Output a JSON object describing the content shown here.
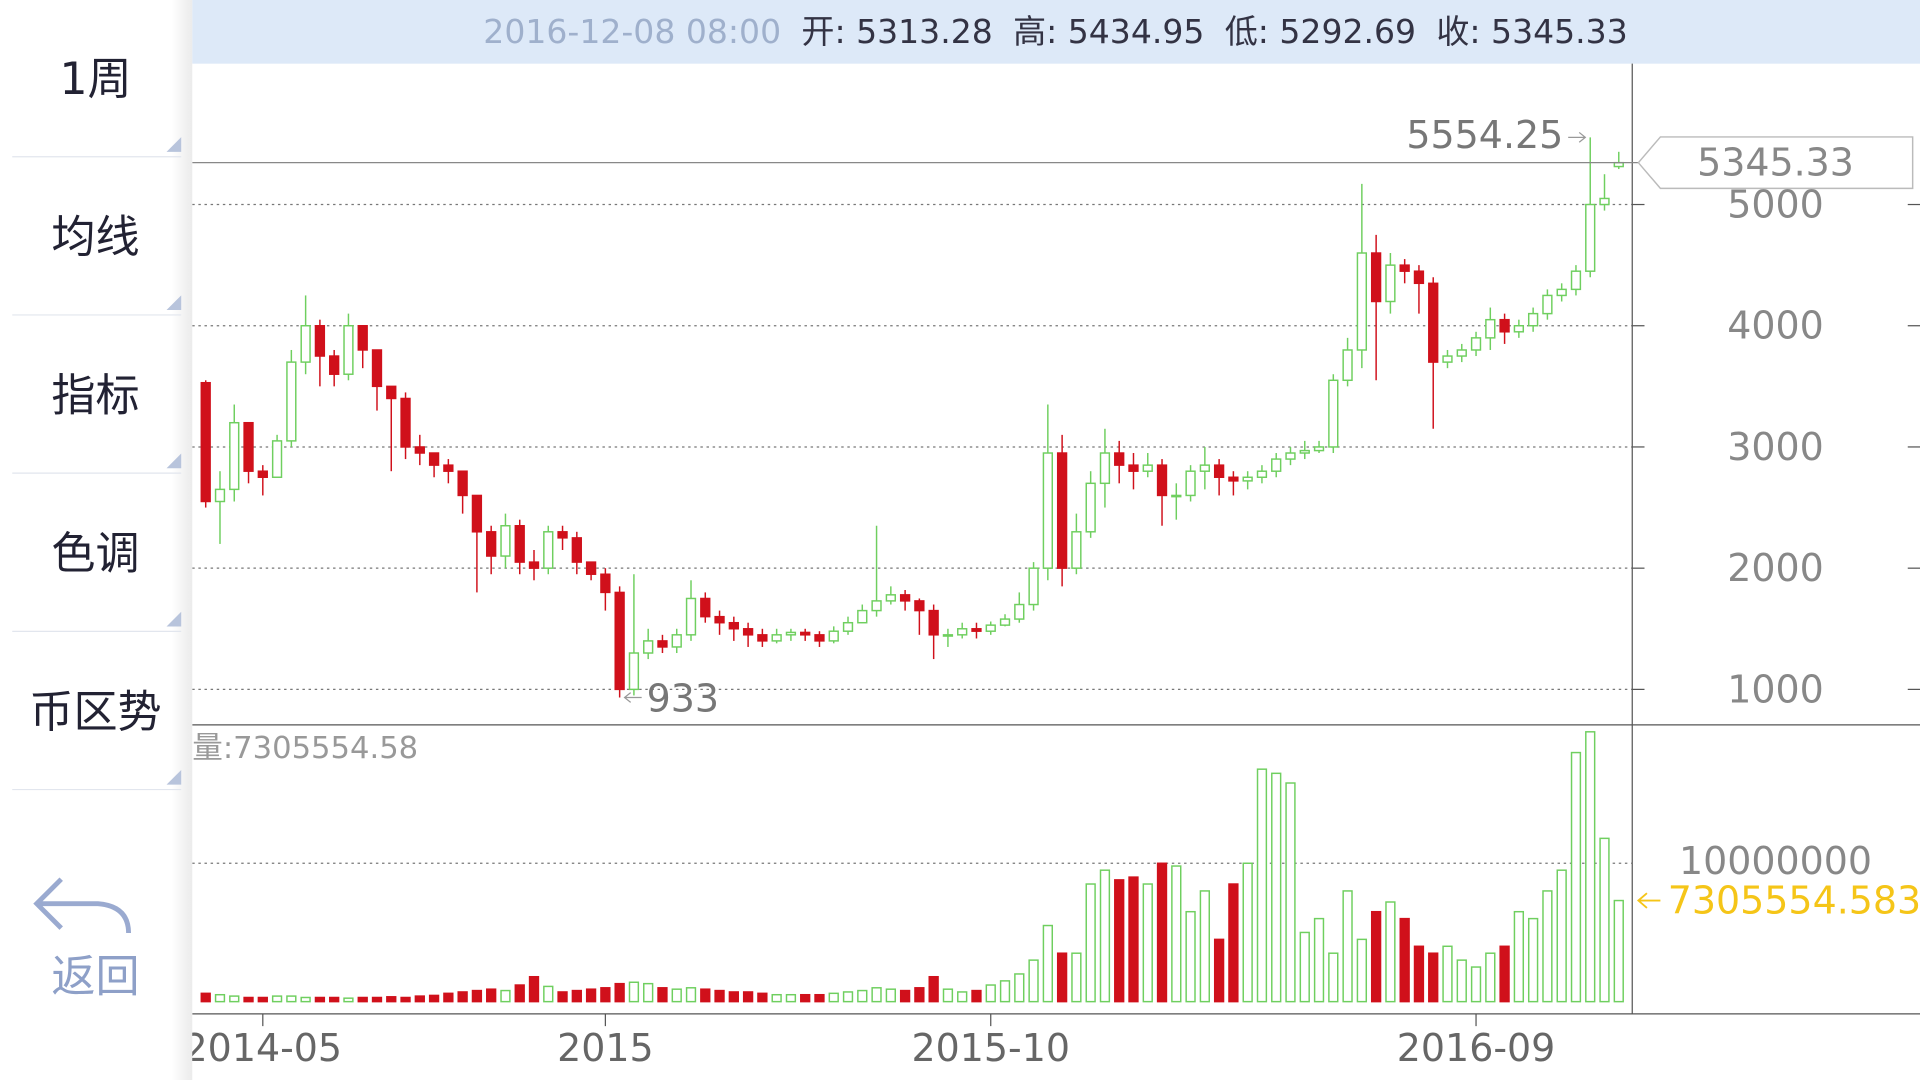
{
  "header": {
    "time": "2016-12-08 08:00",
    "open": "开: 5313.28",
    "high": "高: 5434.95",
    "low": "低: 5292.69",
    "close": "收: 5345.33"
  },
  "sidebar": {
    "items": [
      "1周",
      "均线",
      "指标",
      "色调",
      "币区势"
    ],
    "back": "返回"
  },
  "chart_data": {
    "type": "candlestick",
    "up_color": "#6fcf5f",
    "down_color": "#d0101b",
    "grid": true,
    "categories": [
      null,
      null,
      null,
      null,
      "2014-05",
      null,
      null,
      null,
      null,
      null,
      null,
      null,
      null,
      null,
      null,
      null,
      null,
      null,
      null,
      null,
      null,
      null,
      null,
      null,
      null,
      null,
      null,
      null,
      "2015",
      null,
      null,
      null,
      null,
      null,
      null,
      null,
      null,
      null,
      null,
      null,
      null,
      null,
      null,
      null,
      null,
      null,
      null,
      null,
      null,
      null,
      null,
      null,
      null,
      null,
      null,
      "2015-10",
      null,
      null,
      null,
      null,
      null,
      null,
      null,
      null,
      null,
      null,
      null,
      null,
      null,
      null,
      null,
      null,
      null,
      null,
      null,
      null,
      null,
      null,
      null,
      null,
      null,
      null,
      null,
      null,
      null,
      null,
      null,
      null,
      null,
      "2016-09",
      null,
      null,
      null,
      null,
      null,
      null,
      null,
      null,
      null,
      null
    ],
    "open": [
      3530,
      2550,
      2650,
      3200,
      2800,
      2750,
      3050,
      3700,
      4000,
      3750,
      3600,
      4000,
      3800,
      3500,
      3400,
      3000,
      2950,
      2850,
      2800,
      2600,
      2300,
      2100,
      2350,
      2050,
      2000,
      2300,
      2250,
      2050,
      1950,
      1800,
      1000,
      1300,
      1400,
      1350,
      1450,
      1750,
      1600,
      1550,
      1500,
      1450,
      1400,
      1450,
      1470,
      1450,
      1400,
      1480,
      1550,
      1650,
      1730,
      1780,
      1730,
      1650,
      1450,
      1450,
      1500,
      1480,
      1530,
      1580,
      1700,
      2000,
      2950,
      2000,
      2300,
      2700,
      2950,
      2850,
      2800,
      2850,
      2600,
      2600,
      2800,
      2850,
      2750,
      2720,
      2750,
      2800,
      2900,
      2950,
      2970,
      3000,
      3550,
      3800,
      4600,
      4200,
      4500,
      4450,
      4350,
      3700,
      3750,
      3800,
      3900,
      4050,
      3950,
      4000,
      4100,
      4250,
      4300,
      4450,
      5000,
      5313.28
    ],
    "high": [
      3550,
      2800,
      3350,
      3200,
      2850,
      3100,
      3800,
      4250,
      4050,
      3800,
      4100,
      4000,
      3800,
      3500,
      3450,
      3100,
      2950,
      2900,
      2800,
      2600,
      2350,
      2450,
      2400,
      2150,
      2350,
      2350,
      2300,
      2050,
      2000,
      1850,
      1950,
      1500,
      1450,
      1500,
      1900,
      1800,
      1650,
      1600,
      1550,
      1500,
      1500,
      1500,
      1500,
      1480,
      1520,
      1600,
      1700,
      2350,
      1850,
      1820,
      1750,
      1700,
      1500,
      1550,
      1550,
      1560,
      1620,
      1800,
      2050,
      3350,
      3100,
      2450,
      2800,
      3150,
      3050,
      2950,
      2950,
      2900,
      2700,
      2850,
      3000,
      2900,
      2800,
      2800,
      2850,
      2950,
      3000,
      3050,
      3050,
      3600,
      3900,
      5170,
      4750,
      4600,
      4550,
      4500,
      4400,
      3800,
      3850,
      3950,
      4150,
      4100,
      4050,
      4150,
      4300,
      4350,
      4500,
      5554.25,
      5250,
      5434.95
    ],
    "low": [
      2500,
      2200,
      2550,
      2700,
      2600,
      2750,
      3000,
      3600,
      3500,
      3500,
      3550,
      3650,
      3300,
      2800,
      2900,
      2850,
      2750,
      2700,
      2450,
      1800,
      1950,
      2000,
      1950,
      1900,
      1950,
      2150,
      1950,
      1900,
      1650,
      933,
      950,
      1250,
      1300,
      1300,
      1400,
      1550,
      1450,
      1400,
      1350,
      1350,
      1380,
      1400,
      1400,
      1350,
      1380,
      1450,
      1550,
      1600,
      1700,
      1650,
      1450,
      1250,
      1350,
      1420,
      1420,
      1450,
      1520,
      1550,
      1650,
      1900,
      1850,
      1950,
      2250,
      2500,
      2700,
      2650,
      2750,
      2350,
      2400,
      2550,
      2650,
      2600,
      2600,
      2650,
      2700,
      2750,
      2850,
      2900,
      2950,
      2950,
      3500,
      3650,
      3550,
      4100,
      4350,
      4100,
      3150,
      3650,
      3700,
      3750,
      3800,
      3850,
      3900,
      3950,
      4050,
      4200,
      4250,
      4400,
      4950,
      5292.69
    ],
    "close": [
      2550,
      2650,
      3200,
      2800,
      2750,
      3050,
      3700,
      4000,
      3750,
      3600,
      4000,
      3800,
      3500,
      3400,
      3000,
      2950,
      2850,
      2800,
      2600,
      2300,
      2100,
      2350,
      2050,
      2000,
      2300,
      2250,
      2050,
      1950,
      1800,
      1000,
      1300,
      1400,
      1350,
      1450,
      1750,
      1600,
      1550,
      1500,
      1450,
      1400,
      1450,
      1470,
      1450,
      1400,
      1480,
      1550,
      1650,
      1730,
      1780,
      1730,
      1650,
      1450,
      1450,
      1500,
      1480,
      1530,
      1580,
      1700,
      2000,
      2950,
      2000,
      2300,
      2700,
      2950,
      2850,
      2800,
      2850,
      2600,
      2600,
      2800,
      2850,
      2750,
      2720,
      2750,
      2800,
      2900,
      2950,
      2970,
      3000,
      3550,
      3800,
      4600,
      4200,
      4500,
      4450,
      4350,
      3700,
      3750,
      3800,
      3900,
      4050,
      3950,
      4000,
      4100,
      4250,
      4300,
      4450,
      5000,
      5050,
      5345.33
    ],
    "volume": [
      600000,
      500000,
      400000,
      300000,
      300000,
      400000,
      400000,
      300000,
      300000,
      300000,
      250000,
      300000,
      300000,
      350000,
      300000,
      400000,
      450000,
      600000,
      700000,
      800000,
      900000,
      800000,
      1200000,
      1800000,
      1100000,
      700000,
      800000,
      900000,
      1000000,
      1300000,
      1400000,
      1300000,
      1000000,
      900000,
      1000000,
      900000,
      800000,
      700000,
      700000,
      600000,
      500000,
      500000,
      500000,
      500000,
      600000,
      700000,
      800000,
      1000000,
      900000,
      800000,
      1000000,
      1800000,
      900000,
      700000,
      800000,
      1200000,
      1500000,
      2000000,
      3000000,
      5500000,
      3500000,
      3500000,
      8500000,
      9500000,
      8800000,
      9000000,
      8500000,
      10000000,
      9800000,
      6500000,
      8000000,
      4500000,
      8500000,
      10000000,
      16800000,
      16500000,
      15800000,
      5000000,
      6000000,
      3500000,
      8000000,
      4500000,
      6500000,
      7200000,
      6000000,
      4000000,
      3500000,
      4000000,
      3000000,
      2500000,
      3500000,
      4000000,
      6500000,
      6000000,
      8000000,
      9500000,
      18000000,
      19500000,
      11800000,
      7305554.583
    ],
    "volume_label": "量:7305554.58",
    "ylim": [
      707,
      6162
    ],
    "yticks": [
      1000,
      2000,
      3000,
      4000,
      5000
    ],
    "volume_ylim": [
      0,
      20000000
    ],
    "volume_yticks": [
      10000000
    ]
  }
}
